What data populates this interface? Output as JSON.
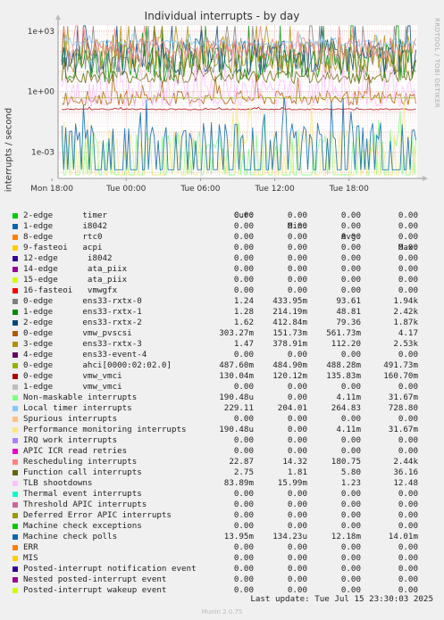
{
  "title": "Individual interrupts - by day",
  "side_label": "RRDTOOL / TOBI OETIKER",
  "footer": {
    "last_update": "Last update: Tue Jul 15 23:30:03 2025",
    "munin": "Munin 2.0.75"
  },
  "table_header": {
    "cur": "Cur:",
    "min": "Min:",
    "avg": "Avg:",
    "max": "Max:"
  },
  "chart_data": {
    "type": "line",
    "title": "Individual interrupts - by day",
    "ylabel": "interrupts / second",
    "xlabel": "",
    "y_scale": "log",
    "ylim": [
      5e-05,
      2000
    ],
    "y_ticks": [
      "1e+03",
      "1e+00",
      "1e-03"
    ],
    "x_ticks": [
      "Mon 18:00",
      "Tue 00:00",
      "Tue 06:00",
      "Tue 12:00",
      "Tue 18:00"
    ],
    "grid": true,
    "legend_position": "below",
    "series": [
      {
        "name": "2-edge      timer",
        "color": "#00cc00",
        "cur": "0.00",
        "min": "0.00",
        "avg": "0.00",
        "max": "0.00"
      },
      {
        "name": "1-edge      i8042",
        "color": "#0066b3",
        "cur": "0.00",
        "min": "0.00",
        "avg": "0.00",
        "max": "0.00"
      },
      {
        "name": "8-edge      rtc0",
        "color": "#ff8000",
        "cur": "0.00",
        "min": "0.00",
        "avg": "0.00",
        "max": "0.00"
      },
      {
        "name": "9-fasteoi   acpi",
        "color": "#ffcc00",
        "cur": "0.00",
        "min": "0.00",
        "avg": "0.00",
        "max": "0.00"
      },
      {
        "name": "12-edge      i8042",
        "color": "#330099",
        "cur": "0.00",
        "min": "0.00",
        "avg": "0.00",
        "max": "0.00"
      },
      {
        "name": "14-edge      ata_piix",
        "color": "#990099",
        "cur": "0.00",
        "min": "0.00",
        "avg": "0.00",
        "max": "0.00"
      },
      {
        "name": "15-edge      ata_piix",
        "color": "#ccff00",
        "cur": "0.00",
        "min": "0.00",
        "avg": "0.00",
        "max": "0.00"
      },
      {
        "name": "16-fasteoi   vmwgfx",
        "color": "#ff0000",
        "cur": "0.00",
        "min": "0.00",
        "avg": "0.00",
        "max": "0.00"
      },
      {
        "name": "0-edge      ens33-rxtx-0",
        "color": "#808080",
        "cur": "1.24",
        "min": "433.95m",
        "avg": "93.61",
        "max": "1.94k"
      },
      {
        "name": "1-edge      ens33-rxtx-1",
        "color": "#008f00",
        "cur": "1.28",
        "min": "214.19m",
        "avg": "48.81",
        "max": "2.42k"
      },
      {
        "name": "2-edge      ens33-rxtx-2",
        "color": "#00487d",
        "cur": "1.62",
        "min": "412.84m",
        "avg": "79.36",
        "max": "1.87k"
      },
      {
        "name": "0-edge      vmw_pvscsi",
        "color": "#b35a00",
        "cur": "303.27m",
        "min": "151.73m",
        "avg": "561.73m",
        "max": "4.17"
      },
      {
        "name": "3-edge      ens33-rxtx-3",
        "color": "#b38f00",
        "cur": "1.47",
        "min": "378.91m",
        "avg": "112.20",
        "max": "2.53k"
      },
      {
        "name": "4-edge      ens33-event-4",
        "color": "#6b006b",
        "cur": "0.00",
        "min": "0.00",
        "avg": "0.00",
        "max": "0.00"
      },
      {
        "name": "0-edge      ahci[0000:02:02.0]",
        "color": "#8fb300",
        "cur": "487.60m",
        "min": "484.90m",
        "avg": "488.28m",
        "max": "491.73m"
      },
      {
        "name": "0-edge      vmw_vmci",
        "color": "#b30000",
        "cur": "130.04m",
        "min": "120.12m",
        "avg": "135.83m",
        "max": "160.70m"
      },
      {
        "name": "1-edge      vmw_vmci",
        "color": "#bebebe",
        "cur": "0.00",
        "min": "0.00",
        "avg": "0.00",
        "max": "0.00"
      },
      {
        "name": "Non-maskable interrupts",
        "color": "#80ff80",
        "cur": "190.48u",
        "min": "0.00",
        "avg": "4.11m",
        "max": "31.67m"
      },
      {
        "name": "Local timer interrupts",
        "color": "#80c9ff",
        "cur": "229.11",
        "min": "204.01",
        "avg": "264.83",
        "max": "728.80"
      },
      {
        "name": "Spurious interrupts",
        "color": "#ffc080",
        "cur": "0.00",
        "min": "0.00",
        "avg": "0.00",
        "max": "0.00"
      },
      {
        "name": "Performance monitoring interrupts",
        "color": "#ffe680",
        "cur": "190.48u",
        "min": "0.00",
        "avg": "4.11m",
        "max": "31.67m"
      },
      {
        "name": "IRQ work interrupts",
        "color": "#aa80ff",
        "cur": "0.00",
        "min": "0.00",
        "avg": "0.00",
        "max": "0.00"
      },
      {
        "name": "APIC ICR read retries",
        "color": "#ee00cc",
        "cur": "0.00",
        "min": "0.00",
        "avg": "0.00",
        "max": "0.00"
      },
      {
        "name": "Rescheduling interrupts",
        "color": "#ff8080",
        "cur": "22.87",
        "min": "14.32",
        "avg": "180.75",
        "max": "2.44k"
      },
      {
        "name": "Function call interrupts",
        "color": "#666600",
        "cur": "2.75",
        "min": "1.81",
        "avg": "5.80",
        "max": "36.16"
      },
      {
        "name": "TLB shootdowns",
        "color": "#ffbfff",
        "cur": "83.89m",
        "min": "15.99m",
        "avg": "1.23",
        "max": "12.48"
      },
      {
        "name": "Thermal event interrupts",
        "color": "#00ffcc",
        "cur": "0.00",
        "min": "0.00",
        "avg": "0.00",
        "max": "0.00"
      },
      {
        "name": "Threshold APIC interrupts",
        "color": "#cc6699",
        "cur": "0.00",
        "min": "0.00",
        "avg": "0.00",
        "max": "0.00"
      },
      {
        "name": "Deferred Error APIC interrupts",
        "color": "#999900",
        "cur": "0.00",
        "min": "0.00",
        "avg": "0.00",
        "max": "0.00"
      },
      {
        "name": "Machine check exceptions",
        "color": "#00cc00",
        "cur": "0.00",
        "min": "0.00",
        "avg": "0.00",
        "max": "0.00"
      },
      {
        "name": "Machine check polls",
        "color": "#0066b3",
        "cur": "13.95m",
        "min": "134.23u",
        "avg": "12.18m",
        "max": "14.01m"
      },
      {
        "name": "ERR",
        "color": "#ff8000",
        "cur": "0.00",
        "min": "0.00",
        "avg": "0.00",
        "max": "0.00"
      },
      {
        "name": "MIS",
        "color": "#ffcc00",
        "cur": "0.00",
        "min": "0.00",
        "avg": "0.00",
        "max": "0.00"
      },
      {
        "name": "Posted-interrupt notification event",
        "color": "#330099",
        "cur": "0.00",
        "min": "0.00",
        "avg": "0.00",
        "max": "0.00"
      },
      {
        "name": "Nested posted-interrupt event",
        "color": "#990099",
        "cur": "0.00",
        "min": "0.00",
        "avg": "0.00",
        "max": "0.00"
      },
      {
        "name": "Posted-interrupt wakeup event",
        "color": "#ccff00",
        "cur": "0.00",
        "min": "0.00",
        "avg": "0.00",
        "max": "0.00"
      }
    ]
  }
}
